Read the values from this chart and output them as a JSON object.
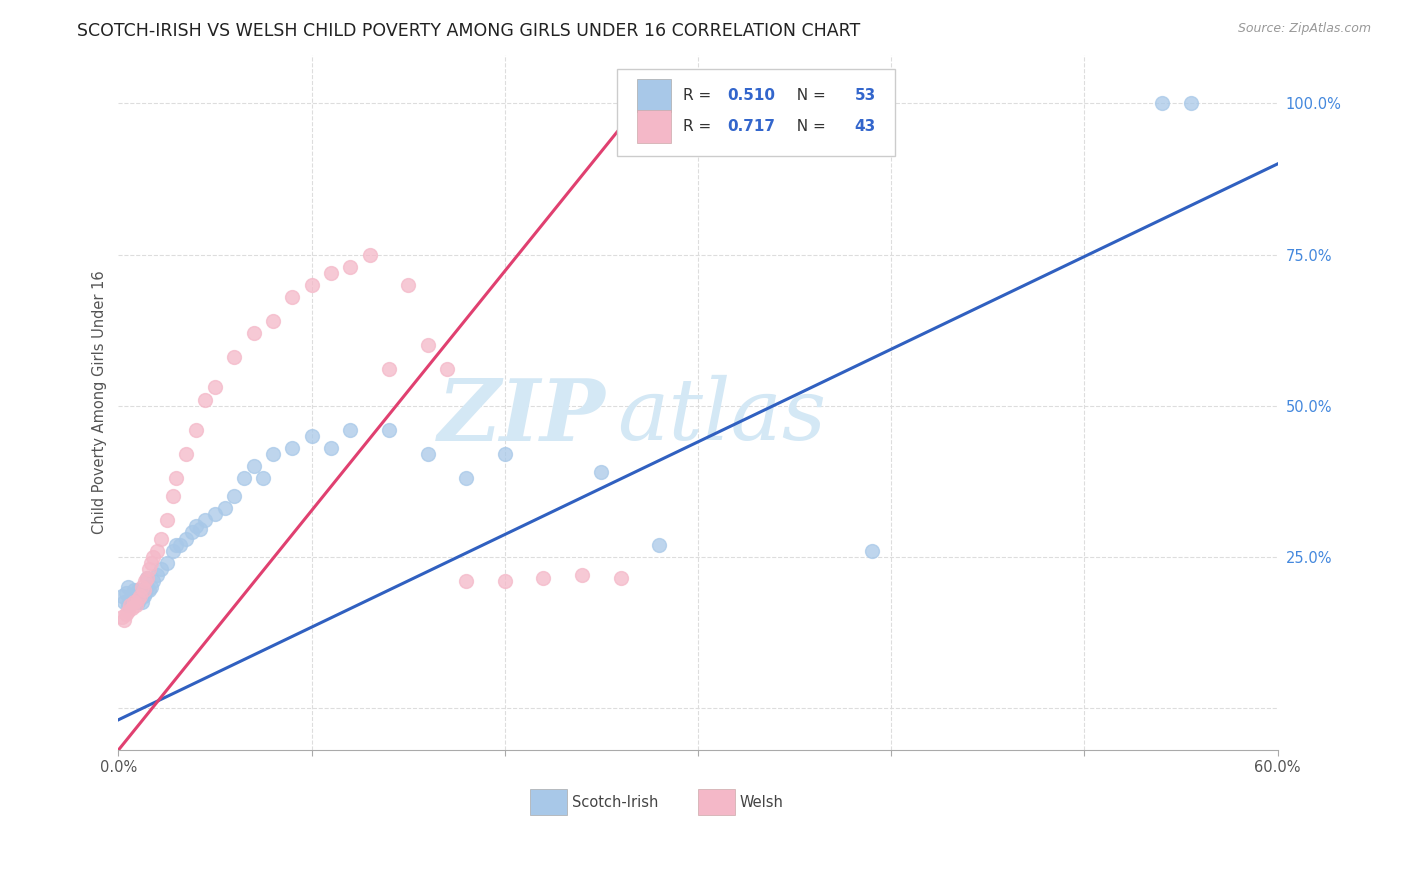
{
  "title": "SCOTCH-IRISH VS WELSH CHILD POVERTY AMONG GIRLS UNDER 16 CORRELATION CHART",
  "source": "Source: ZipAtlas.com",
  "ylabel": "Child Poverty Among Girls Under 16",
  "y_ticks": [
    0.0,
    0.25,
    0.5,
    0.75,
    1.0
  ],
  "y_tick_labels": [
    "",
    "25.0%",
    "50.0%",
    "75.0%",
    "100.0%"
  ],
  "x_min": 0.0,
  "x_max": 0.6,
  "y_min": -0.07,
  "y_max": 1.08,
  "blue_R": 0.51,
  "blue_N": 53,
  "pink_R": 0.717,
  "pink_N": 43,
  "blue_color": "#a8c8e8",
  "pink_color": "#f4b8c8",
  "blue_line_color": "#3060c0",
  "pink_line_color": "#e04070",
  "watermark_zip": "ZIP",
  "watermark_atlas": "atlas",
  "watermark_color": "#d4e8f5",
  "background_color": "#ffffff",
  "grid_color": "#dddddd",
  "tick_color": "#4488dd",
  "scotch_irish_x": [
    0.002,
    0.003,
    0.004,
    0.005,
    0.005,
    0.006,
    0.007,
    0.008,
    0.008,
    0.009,
    0.01,
    0.01,
    0.011,
    0.012,
    0.012,
    0.013,
    0.014,
    0.015,
    0.015,
    0.016,
    0.017,
    0.018,
    0.02,
    0.022,
    0.025,
    0.028,
    0.03,
    0.032,
    0.035,
    0.038,
    0.04,
    0.042,
    0.045,
    0.05,
    0.055,
    0.06,
    0.065,
    0.07,
    0.075,
    0.08,
    0.09,
    0.1,
    0.11,
    0.12,
    0.14,
    0.16,
    0.18,
    0.2,
    0.25,
    0.28,
    0.39,
    0.54,
    0.555
  ],
  "scotch_irish_y": [
    0.185,
    0.175,
    0.19,
    0.17,
    0.2,
    0.18,
    0.175,
    0.185,
    0.195,
    0.18,
    0.175,
    0.195,
    0.185,
    0.175,
    0.19,
    0.185,
    0.19,
    0.2,
    0.215,
    0.195,
    0.2,
    0.21,
    0.22,
    0.23,
    0.24,
    0.26,
    0.27,
    0.27,
    0.28,
    0.29,
    0.3,
    0.295,
    0.31,
    0.32,
    0.33,
    0.35,
    0.38,
    0.4,
    0.38,
    0.42,
    0.43,
    0.45,
    0.43,
    0.46,
    0.46,
    0.42,
    0.38,
    0.42,
    0.39,
    0.27,
    0.26,
    1.0,
    1.0
  ],
  "welsh_x": [
    0.002,
    0.003,
    0.004,
    0.005,
    0.006,
    0.007,
    0.008,
    0.009,
    0.01,
    0.011,
    0.012,
    0.013,
    0.014,
    0.015,
    0.016,
    0.017,
    0.018,
    0.02,
    0.022,
    0.025,
    0.028,
    0.03,
    0.035,
    0.04,
    0.045,
    0.05,
    0.06,
    0.07,
    0.08,
    0.09,
    0.1,
    0.11,
    0.12,
    0.13,
    0.14,
    0.15,
    0.16,
    0.17,
    0.18,
    0.2,
    0.22,
    0.24,
    0.26
  ],
  "welsh_y": [
    0.15,
    0.145,
    0.155,
    0.16,
    0.17,
    0.165,
    0.175,
    0.17,
    0.18,
    0.185,
    0.2,
    0.195,
    0.21,
    0.215,
    0.23,
    0.24,
    0.25,
    0.26,
    0.28,
    0.31,
    0.35,
    0.38,
    0.42,
    0.46,
    0.51,
    0.53,
    0.58,
    0.62,
    0.64,
    0.68,
    0.7,
    0.72,
    0.73,
    0.75,
    0.56,
    0.7,
    0.6,
    0.56,
    0.21,
    0.21,
    0.215,
    0.22,
    0.215
  ],
  "legend_label_blue": "Scotch-Irish",
  "legend_label_pink": "Welsh",
  "blue_trendline_x0": 0.0,
  "blue_trendline_y0": -0.02,
  "blue_trendline_x1": 0.6,
  "blue_trendline_y1": 0.9,
  "pink_trendline_x0": 0.0,
  "pink_trendline_y0": -0.07,
  "pink_trendline_x1": 0.27,
  "pink_trendline_y1": 1.0
}
